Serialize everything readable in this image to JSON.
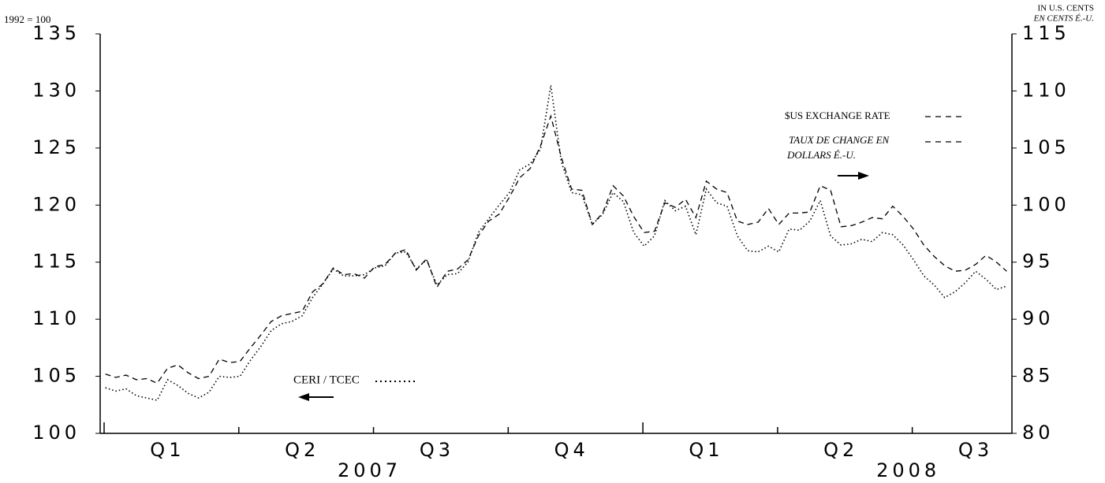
{
  "chart_data": {
    "type": "line",
    "left_axis_label": "1992 = 100",
    "right_axis_label": [
      "IN U.S. CENTS",
      "EN CENTS É.-U."
    ],
    "categories": [
      null,
      null,
      null,
      null,
      null,
      null,
      "Q1",
      null,
      null,
      null,
      null,
      null,
      null,
      null,
      null,
      null,
      null,
      null,
      null,
      "Q2",
      null,
      null,
      null,
      null,
      null,
      null,
      null,
      null,
      null,
      null,
      null,
      null,
      "Q3",
      null,
      null,
      null,
      null,
      null,
      null,
      null,
      null,
      null,
      null,
      null,
      null,
      "Q4",
      null,
      null,
      null,
      null,
      null,
      null,
      null,
      null,
      null,
      null,
      null,
      null,
      "Q1",
      null,
      null,
      null,
      null,
      null,
      null,
      null,
      null,
      null,
      null,
      null,
      null,
      "Q2",
      null,
      null,
      null,
      null,
      null,
      null,
      null,
      null,
      null,
      null,
      null,
      null,
      "Q3",
      null,
      null,
      null
    ],
    "year_groups": [
      {
        "label": "2007",
        "weeks": 52
      },
      {
        "label": "2008",
        "weeks": 36
      }
    ],
    "ylim": [
      100,
      135
    ],
    "yticks": [
      100,
      105,
      110,
      115,
      120,
      125,
      130,
      135
    ],
    "y2lim": [
      80,
      115
    ],
    "y2ticks": [
      80,
      85,
      90,
      95,
      100,
      105,
      110,
      115
    ],
    "grid": false,
    "series": [
      {
        "name": "$US EXCHANGE RATE",
        "name_fr": [
          "TAUX DE CHANGE EN",
          "DOLLARS É.-U."
        ],
        "axis": "y2",
        "color": "#000000",
        "style": "dashed",
        "values": [
          85.2,
          84.9,
          85.1,
          84.7,
          84.8,
          84.4,
          85.7,
          86.0,
          85.3,
          84.8,
          85.0,
          86.5,
          86.2,
          86.3,
          87.5,
          88.6,
          89.8,
          90.3,
          90.5,
          90.7,
          92.4,
          93.1,
          94.5,
          93.9,
          94.0,
          93.6,
          94.6,
          94.8,
          95.8,
          96.1,
          94.3,
          95.3,
          92.8,
          94.2,
          94.4,
          95.2,
          97.3,
          98.6,
          99.2,
          100.7,
          102.4,
          103.2,
          105.2,
          107.8,
          104.2,
          101.4,
          101.3,
          98.3,
          99.3,
          101.7,
          100.8,
          99.0,
          97.6,
          97.7,
          100.2,
          99.8,
          100.5,
          98.9,
          102.1,
          101.4,
          101.1,
          98.6,
          98.3,
          98.5,
          99.7,
          98.3,
          99.3,
          99.3,
          99.4,
          101.7,
          101.3,
          98.1,
          98.2,
          98.5,
          98.9,
          98.8,
          99.9,
          99.0,
          97.9,
          96.5,
          95.5,
          94.7,
          94.2,
          94.3,
          94.8,
          95.6,
          95.0,
          94.2
        ]
      },
      {
        "name": "CERI / TCEC",
        "axis": "y",
        "color": "#000000",
        "style": "dotted",
        "values": [
          104.0,
          103.7,
          103.9,
          103.3,
          103.1,
          102.9,
          104.7,
          104.2,
          103.5,
          103.1,
          103.6,
          105.0,
          104.9,
          105.0,
          106.4,
          107.6,
          109.0,
          109.6,
          109.8,
          110.3,
          111.9,
          113.1,
          114.4,
          113.8,
          113.8,
          113.9,
          114.5,
          114.7,
          115.8,
          115.9,
          114.4,
          115.2,
          113.0,
          113.9,
          114.0,
          115.0,
          117.6,
          118.8,
          120.0,
          121.1,
          123.1,
          123.6,
          124.9,
          130.5,
          123.8,
          121.1,
          120.9,
          118.3,
          119.2,
          121.1,
          120.3,
          117.6,
          116.4,
          117.3,
          120.4,
          119.5,
          119.9,
          117.4,
          121.4,
          120.2,
          119.9,
          117.3,
          116.0,
          115.9,
          116.4,
          115.9,
          117.9,
          117.8,
          118.6,
          120.4,
          117.3,
          116.5,
          116.6,
          117.0,
          116.8,
          117.6,
          117.4,
          116.5,
          115.2,
          113.8,
          113.0,
          111.9,
          112.4,
          113.2,
          114.2,
          113.5,
          112.6,
          112.9
        ]
      }
    ]
  }
}
